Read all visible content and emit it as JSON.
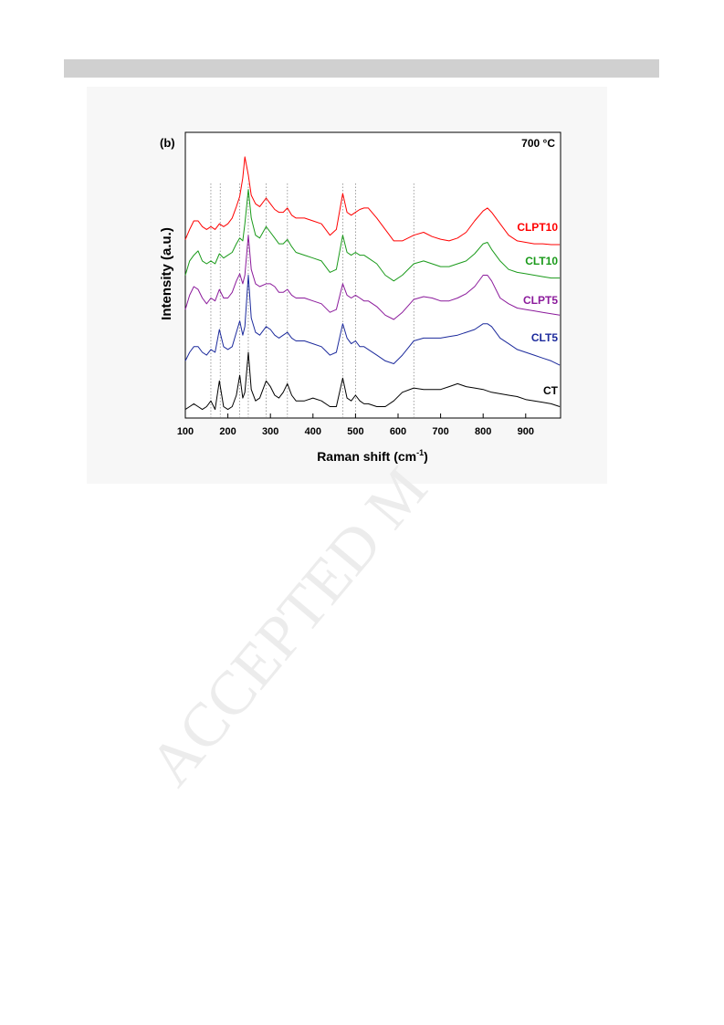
{
  "watermark": "ACCEPTED M",
  "chart_data": {
    "type": "line",
    "panel_label": "(b)",
    "annotation": "700 °C",
    "xlabel": "Raman shift (cm",
    "xlabel_sup": "-1",
    "xlabel_end": ")",
    "ylabel": "Intensity (a.u.)",
    "xlim": [
      100,
      982
    ],
    "xticks": [
      100,
      200,
      300,
      400,
      500,
      600,
      700,
      800,
      900
    ],
    "ylim": [
      0,
      100
    ],
    "vlines": [
      160,
      182,
      228,
      248,
      290,
      340,
      470,
      500,
      637
    ],
    "x": [
      100,
      110,
      120,
      130,
      140,
      150,
      160,
      170,
      180,
      190,
      200,
      210,
      220,
      228,
      235,
      240,
      248,
      255,
      265,
      275,
      290,
      300,
      310,
      320,
      330,
      340,
      350,
      360,
      380,
      400,
      420,
      440,
      455,
      470,
      480,
      490,
      500,
      510,
      520,
      530,
      550,
      570,
      590,
      610,
      637,
      660,
      680,
      700,
      720,
      740,
      760,
      780,
      800,
      810,
      820,
      840,
      860,
      880,
      900,
      920,
      940,
      960,
      980
    ],
    "series": [
      {
        "name": "CLPT10",
        "color": "#ff0000",
        "values": [
          62.5,
          66,
          69,
          69,
          67,
          66,
          67,
          66,
          68,
          67,
          68,
          70,
          74,
          77.6,
          84,
          91.4,
          85,
          78,
          75,
          74,
          77,
          75,
          73,
          72,
          72,
          73.5,
          71,
          70,
          70,
          69,
          68,
          64,
          66,
          78.6,
          72,
          71,
          72,
          73,
          73.5,
          73.5,
          70,
          66,
          62,
          62,
          64,
          65,
          63.5,
          62.6,
          62,
          63,
          65,
          69,
          72.5,
          73.5,
          72,
          68,
          64,
          62,
          61.5,
          61,
          61,
          60.7,
          60.7
        ]
      },
      {
        "name": "CLT10",
        "color": "#1a9a1a",
        "values": [
          50,
          55,
          57,
          58.5,
          55,
          54,
          55,
          54,
          57.5,
          56,
          57,
          58,
          61,
          63,
          62,
          68,
          80,
          70,
          64,
          63,
          67,
          65,
          63,
          61,
          61,
          62.5,
          60,
          58,
          57,
          56,
          55,
          51,
          52,
          64,
          58,
          57,
          58,
          57,
          57,
          56,
          54,
          50,
          48,
          50,
          54,
          55,
          54,
          53,
          53,
          54,
          55,
          57.5,
          61,
          61.5,
          59,
          55,
          52,
          51,
          50.5,
          50,
          49.5,
          49,
          49
        ]
      },
      {
        "name": "CLPT5",
        "color": "#8b1a9b",
        "values": [
          38,
          43,
          46,
          45,
          42,
          40,
          42,
          41,
          45,
          42,
          42,
          44,
          48,
          50.5,
          47,
          50,
          64,
          52,
          47,
          46,
          47,
          47,
          46,
          44,
          44,
          45,
          43,
          42,
          42,
          41,
          40,
          37,
          38,
          47,
          43,
          42,
          43,
          42,
          41,
          41,
          39,
          36,
          34.5,
          37,
          41.5,
          42.5,
          42,
          41,
          41,
          42,
          43.5,
          46,
          50,
          50,
          48,
          42,
          40,
          38.5,
          38,
          37.5,
          37,
          36.5,
          36
        ]
      },
      {
        "name": "CLT5",
        "color": "#1c2a9c",
        "values": [
          20,
          23,
          25,
          25,
          23,
          22,
          24,
          23,
          31,
          25,
          24,
          25,
          30,
          34,
          29,
          32,
          50,
          35,
          30,
          29,
          32,
          31,
          29,
          28,
          29,
          30,
          28,
          27,
          27,
          26,
          25,
          22,
          23,
          33,
          28,
          26,
          27,
          25,
          25,
          24,
          22,
          20,
          19,
          22,
          27,
          28,
          28,
          28,
          28.5,
          29,
          30,
          31,
          33,
          33,
          32,
          28,
          26,
          24,
          23,
          22,
          21,
          20,
          18.5
        ]
      },
      {
        "name": "CT",
        "color": "#000000",
        "values": [
          3,
          4,
          5,
          4,
          3,
          4,
          6,
          3,
          13,
          4,
          3,
          4,
          8,
          15,
          7,
          9,
          23,
          10,
          6,
          7,
          13,
          11,
          8,
          7,
          9,
          12,
          8,
          6,
          6,
          7,
          6,
          4,
          4,
          14,
          7,
          6,
          8,
          6,
          5,
          5,
          4,
          4,
          6,
          9,
          10.5,
          10,
          10,
          10,
          11,
          12,
          11,
          10.5,
          10,
          9.5,
          9,
          8.5,
          8,
          7.5,
          6.5,
          6,
          5.5,
          5,
          4
        ]
      }
    ]
  }
}
